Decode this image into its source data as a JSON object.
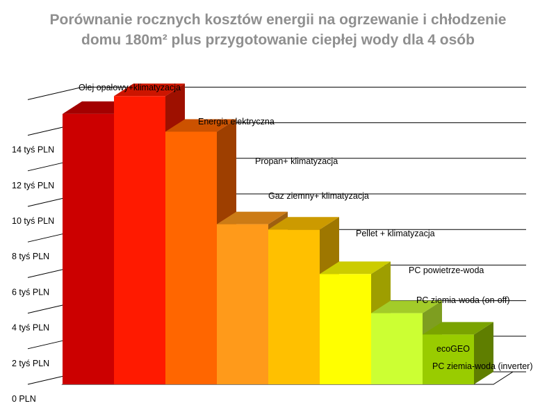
{
  "chart_data": {
    "type": "bar",
    "title_line1": "Porównanie rocznych kosztów energii na ogrzewanie i chłodzenie",
    "title_line2": "domu 180m² plus przygotowanie ciepłej wody dla 4 osób",
    "xlabel": "",
    "ylabel": "",
    "ylim": [
      0,
      16
    ],
    "grid": true,
    "y_ticks": [
      {
        "value": 0,
        "label": "0 PLN"
      },
      {
        "value": 2,
        "label": "2 tyś PLN"
      },
      {
        "value": 4,
        "label": "4 tyś PLN"
      },
      {
        "value": 6,
        "label": "6 tyś PLN"
      },
      {
        "value": 8,
        "label": "8 tyś PLN"
      },
      {
        "value": 10,
        "label": "10 tyś PLN"
      },
      {
        "value": 12,
        "label": "12 tyś PLN"
      },
      {
        "value": 14,
        "label": "14 tyś PLN"
      }
    ],
    "bars": [
      {
        "label": "Olej opałowy+klimatyzacja",
        "value": 15.2,
        "color": "#cc0000"
      },
      {
        "label": "Energia elektryczna",
        "value": 16.2,
        "color": "#ff1a00"
      },
      {
        "label": "Propan+ klimatyzacja",
        "value": 14.2,
        "color": "#ff6600"
      },
      {
        "label": "Gaz ziemny+ klimatyzacja",
        "value": 9.0,
        "color": "#ff9a1a"
      },
      {
        "label": "Pellet + klimatyzacja",
        "value": 8.7,
        "color": "#ffc000"
      },
      {
        "label": "PC powietrze-woda",
        "value": 6.2,
        "color": "#ffff00"
      },
      {
        "label": "PC ziemia-woda (on-off)",
        "value": 4.0,
        "color": "#ccff33"
      },
      {
        "label": "ecoGEO",
        "label2": "PC ziemia-woda (inverter)",
        "value": 2.8,
        "color": "#99cc00"
      }
    ]
  }
}
